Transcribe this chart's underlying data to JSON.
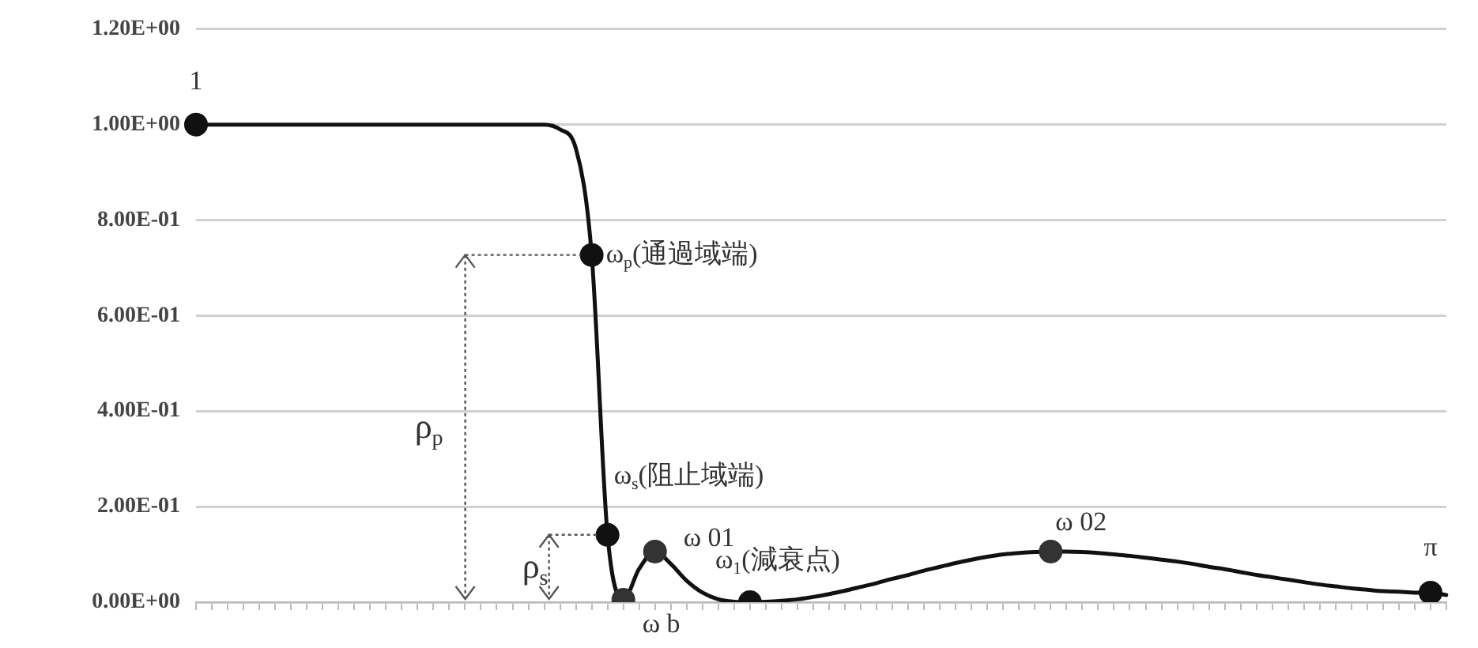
{
  "chart_data": {
    "type": "line",
    "categories": [
      null,
      null,
      null,
      null,
      null,
      null,
      null,
      null,
      null,
      null,
      null,
      null,
      null,
      null,
      null,
      null,
      null,
      null,
      null,
      null,
      null,
      null,
      null,
      null,
      null,
      null,
      null,
      null,
      null,
      null,
      null,
      null,
      null,
      null,
      null,
      null,
      null,
      null,
      null,
      null,
      null,
      null,
      null,
      null,
      null,
      null,
      null,
      null,
      null,
      null,
      null,
      null,
      null,
      null,
      null,
      null,
      null,
      null,
      null,
      null,
      null,
      null,
      null,
      null,
      null,
      null,
      null,
      null,
      null,
      null,
      null,
      null,
      null,
      null,
      null,
      null,
      null,
      null,
      null,
      null
    ],
    "series": [
      {
        "color": "#111111",
        "marker": "none",
        "values": [
          1,
          1,
          1,
          1,
          1,
          1,
          1,
          1,
          1,
          1,
          1,
          1,
          1,
          1,
          1,
          1,
          1,
          1,
          1,
          1,
          1,
          1,
          1,
          0.99,
          0.95,
          0.727,
          0.141,
          0.005,
          0.07,
          0.106,
          0.08,
          0.045,
          0.02,
          0.006,
          0.001,
          0,
          0.001,
          0.003,
          0.006,
          0.011,
          0.017,
          0.024,
          0.032,
          0.04,
          0.049,
          0.057,
          0.066,
          0.074,
          0.082,
          0.089,
          0.095,
          0.1,
          0.103,
          0.105,
          0.106,
          0.106,
          0.105,
          0.103,
          0.1,
          0.097,
          0.093,
          0.089,
          0.085,
          0.08,
          0.074,
          0.069,
          0.063,
          0.057,
          0.052,
          0.047,
          0.042,
          0.037,
          0.033,
          0.029,
          0.026,
          0.023,
          0.022,
          0.02,
          0.02,
          0.015
        ]
      },
      {
        "type": "scatter",
        "color": "#111111",
        "marker": "circle",
        "values": [
          1,
          null,
          null,
          null,
          null,
          null,
          null,
          null,
          null,
          null,
          null,
          null,
          null,
          null,
          null,
          null,
          null,
          null,
          null,
          null,
          null,
          null,
          null,
          null,
          null,
          0.727,
          0.141,
          null,
          null,
          null,
          null,
          null,
          null,
          null,
          null,
          0,
          null,
          null,
          null,
          null,
          null,
          null,
          null,
          null,
          null,
          null,
          null,
          null,
          null,
          null,
          null,
          null,
          null,
          null,
          null,
          null,
          null,
          null,
          null,
          null,
          null,
          null,
          null,
          null,
          null,
          null,
          null,
          null,
          null,
          null,
          null,
          null,
          null,
          null,
          null,
          null,
          null,
          null,
          0.02,
          null
        ]
      },
      {
        "type": "scatter",
        "color": "#333333",
        "marker": "circle",
        "values": [
          null,
          null,
          null,
          null,
          null,
          null,
          null,
          null,
          null,
          null,
          null,
          null,
          null,
          null,
          null,
          null,
          null,
          null,
          null,
          null,
          null,
          null,
          null,
          null,
          null,
          null,
          null,
          0.005,
          null,
          0.106,
          null,
          null,
          null,
          null,
          null,
          null,
          null,
          null,
          null,
          null,
          null,
          null,
          null,
          null,
          null,
          null,
          null,
          null,
          null,
          null,
          null,
          null,
          null,
          null,
          0.106,
          null,
          null,
          null,
          null,
          null,
          null,
          null,
          null,
          null,
          null,
          null,
          null,
          null,
          null,
          null,
          null,
          null,
          null,
          null,
          null,
          null,
          null,
          null,
          null,
          null
        ]
      }
    ],
    "ylim": [
      0,
      1.2
    ],
    "yticks": [
      {
        "value": 0,
        "label": "0.00E+00"
      },
      {
        "value": 0.2,
        "label": "2.00E-01"
      },
      {
        "value": 0.4,
        "label": "4.00E-01"
      },
      {
        "value": 0.6,
        "label": "6.00E-01"
      },
      {
        "value": 0.8,
        "label": "8.00E-01"
      },
      {
        "value": 1,
        "label": "1.00E+00"
      },
      {
        "value": 1.2,
        "label": "1.20E+00"
      }
    ],
    "grid": "y",
    "tick_labels": "y",
    "annotations": [
      "1",
      "ω$_{p}$(通過域端)",
      "ω$_{s}$(阻止域端)",
      "ω b",
      "ω 01",
      "ω$_{1}$(減衰点)",
      "ω 02",
      "π",
      "ρ$_{p}$",
      "ρ$_{s}$"
    ]
  }
}
